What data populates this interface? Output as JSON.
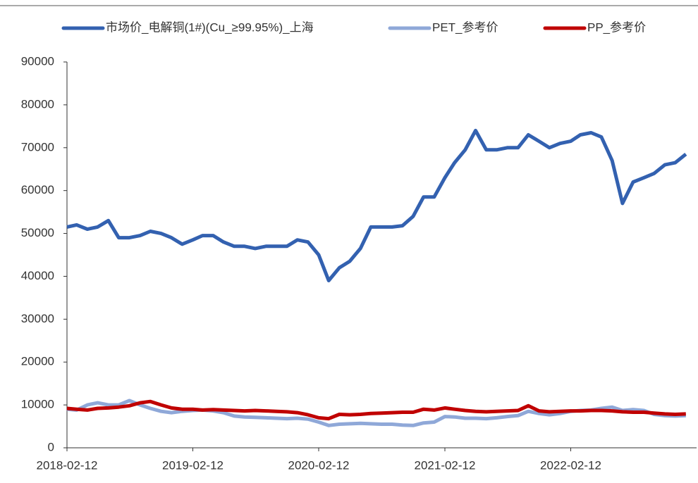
{
  "chart_data": {
    "type": "line",
    "x": [
      "2018-02-12",
      "2018-03-12",
      "2018-04-12",
      "2018-05-12",
      "2018-06-12",
      "2018-07-12",
      "2018-08-12",
      "2018-09-12",
      "2018-10-12",
      "2018-11-12",
      "2018-12-12",
      "2019-01-12",
      "2019-02-12",
      "2019-03-12",
      "2019-04-12",
      "2019-05-12",
      "2019-06-12",
      "2019-07-12",
      "2019-08-12",
      "2019-09-12",
      "2019-10-12",
      "2019-11-12",
      "2019-12-12",
      "2020-01-12",
      "2020-02-12",
      "2020-03-12",
      "2020-04-12",
      "2020-05-12",
      "2020-06-12",
      "2020-07-12",
      "2020-08-12",
      "2020-09-12",
      "2020-10-12",
      "2020-11-12",
      "2020-12-12",
      "2021-01-12",
      "2021-02-12",
      "2021-03-12",
      "2021-04-12",
      "2021-05-12",
      "2021-06-12",
      "2021-07-12",
      "2021-08-12",
      "2021-09-12",
      "2021-10-12",
      "2021-11-12",
      "2021-12-12",
      "2022-01-12",
      "2022-02-12",
      "2022-03-12",
      "2022-04-12",
      "2022-05-12",
      "2022-06-12",
      "2022-07-12",
      "2022-08-12",
      "2022-09-12",
      "2022-10-12",
      "2022-11-12",
      "2022-12-12",
      "2023-01-12"
    ],
    "series": [
      {
        "name": "市场价_电解铜(1#)(Cu_≥99.95%)_上海",
        "color": "#3361b0",
        "values": [
          51500,
          52000,
          51000,
          51500,
          53000,
          49000,
          49000,
          49500,
          50500,
          50000,
          49000,
          47500,
          48500,
          49500,
          49500,
          48000,
          47000,
          47000,
          46500,
          47000,
          47000,
          47000,
          48500,
          48000,
          45000,
          39000,
          42000,
          43500,
          46500,
          51500,
          51500,
          51500,
          51800,
          54000,
          58500,
          58500,
          63000,
          66500,
          69500,
          74000,
          69500,
          69500,
          70000,
          70000,
          73000,
          71500,
          70000,
          71000,
          71500,
          73000,
          73500,
          72500,
          67000,
          57000,
          62000,
          63000,
          64000,
          66000,
          66500,
          68500
        ]
      },
      {
        "name": "PET_参考价",
        "color": "#8fa8d8",
        "values": [
          9000,
          8800,
          10000,
          10500,
          10000,
          10000,
          11000,
          10000,
          9200,
          8500,
          8200,
          8500,
          8700,
          8800,
          8600,
          8200,
          7400,
          7200,
          7100,
          7000,
          6900,
          6800,
          6900,
          6700,
          6000,
          5200,
          5500,
          5600,
          5700,
          5600,
          5500,
          5500,
          5300,
          5200,
          5800,
          6000,
          7300,
          7200,
          6900,
          6900,
          6800,
          7000,
          7300,
          7500,
          8500,
          8000,
          7700,
          8000,
          8500,
          8700,
          8800,
          9200,
          9500,
          8700,
          8900,
          8700,
          7800,
          7500,
          7400,
          7500
        ]
      },
      {
        "name": "PP_参考价",
        "color": "#c00000",
        "values": [
          9200,
          9000,
          8800,
          9200,
          9300,
          9500,
          9800,
          10500,
          10800,
          10000,
          9300,
          9000,
          9000,
          8800,
          8900,
          8800,
          8700,
          8600,
          8700,
          8600,
          8500,
          8400,
          8200,
          7700,
          7000,
          6800,
          7800,
          7700,
          7800,
          8000,
          8100,
          8200,
          8300,
          8300,
          9000,
          8800,
          9300,
          9000,
          8700,
          8500,
          8400,
          8500,
          8600,
          8700,
          9800,
          8600,
          8400,
          8500,
          8600,
          8600,
          8700,
          8700,
          8600,
          8400,
          8300,
          8300,
          8100,
          7900,
          7800,
          7900
        ]
      }
    ],
    "xlim": [
      "2018-02-12",
      "2023-02-12"
    ],
    "xticks": [
      "2018-02-12",
      "2019-02-12",
      "2020-02-12",
      "2021-02-12",
      "2022-02-12"
    ],
    "ylim": [
      0,
      90000
    ],
    "yticks": [
      0,
      10000,
      20000,
      30000,
      40000,
      50000,
      60000,
      70000,
      80000,
      90000
    ],
    "grid": false,
    "legend": "top"
  }
}
